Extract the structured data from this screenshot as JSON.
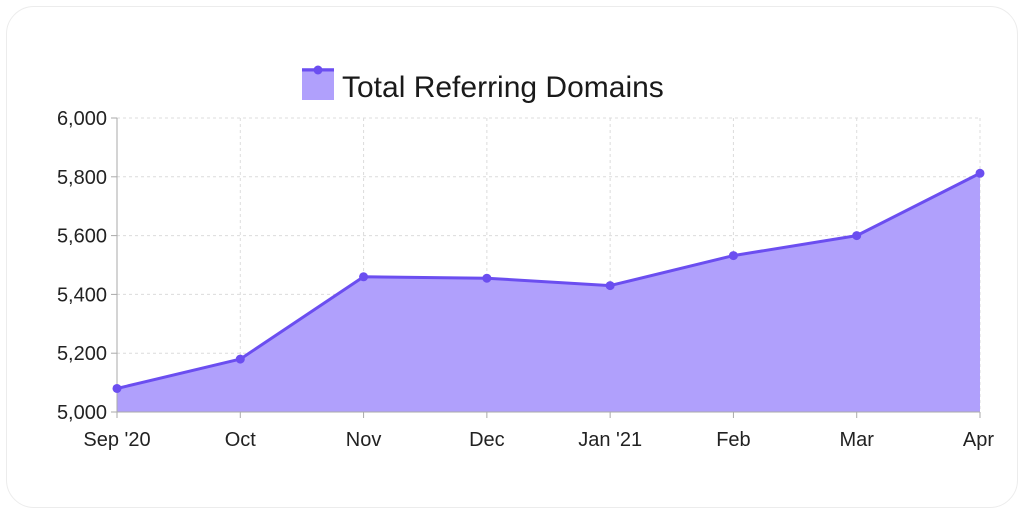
{
  "chart_data": {
    "type": "area",
    "title": "",
    "xlabel": "",
    "ylabel": "",
    "categories": [
      "Sep '20",
      "Oct",
      "Nov",
      "Dec",
      "Jan '21",
      "Feb",
      "Mar",
      "Apr"
    ],
    "series": [
      {
        "name": "Total Referring Domains",
        "values": [
          5080,
          5180,
          5460,
          5455,
          5430,
          5532,
          5600,
          5812
        ]
      }
    ],
    "ylim": [
      5000,
      6000
    ],
    "yticks": [
      5000,
      5200,
      5400,
      5600,
      5800,
      6000
    ],
    "ytick_labels": [
      "5,000",
      "5,200",
      "5,400",
      "5,600",
      "5,800",
      "6,000"
    ],
    "grid": true,
    "legend_position": "top-center",
    "colors": {
      "line": "#6b4ef0",
      "fill": "#b0a0fc",
      "grid": "#dcdcdc",
      "axis": "#aaaaaa"
    }
  }
}
